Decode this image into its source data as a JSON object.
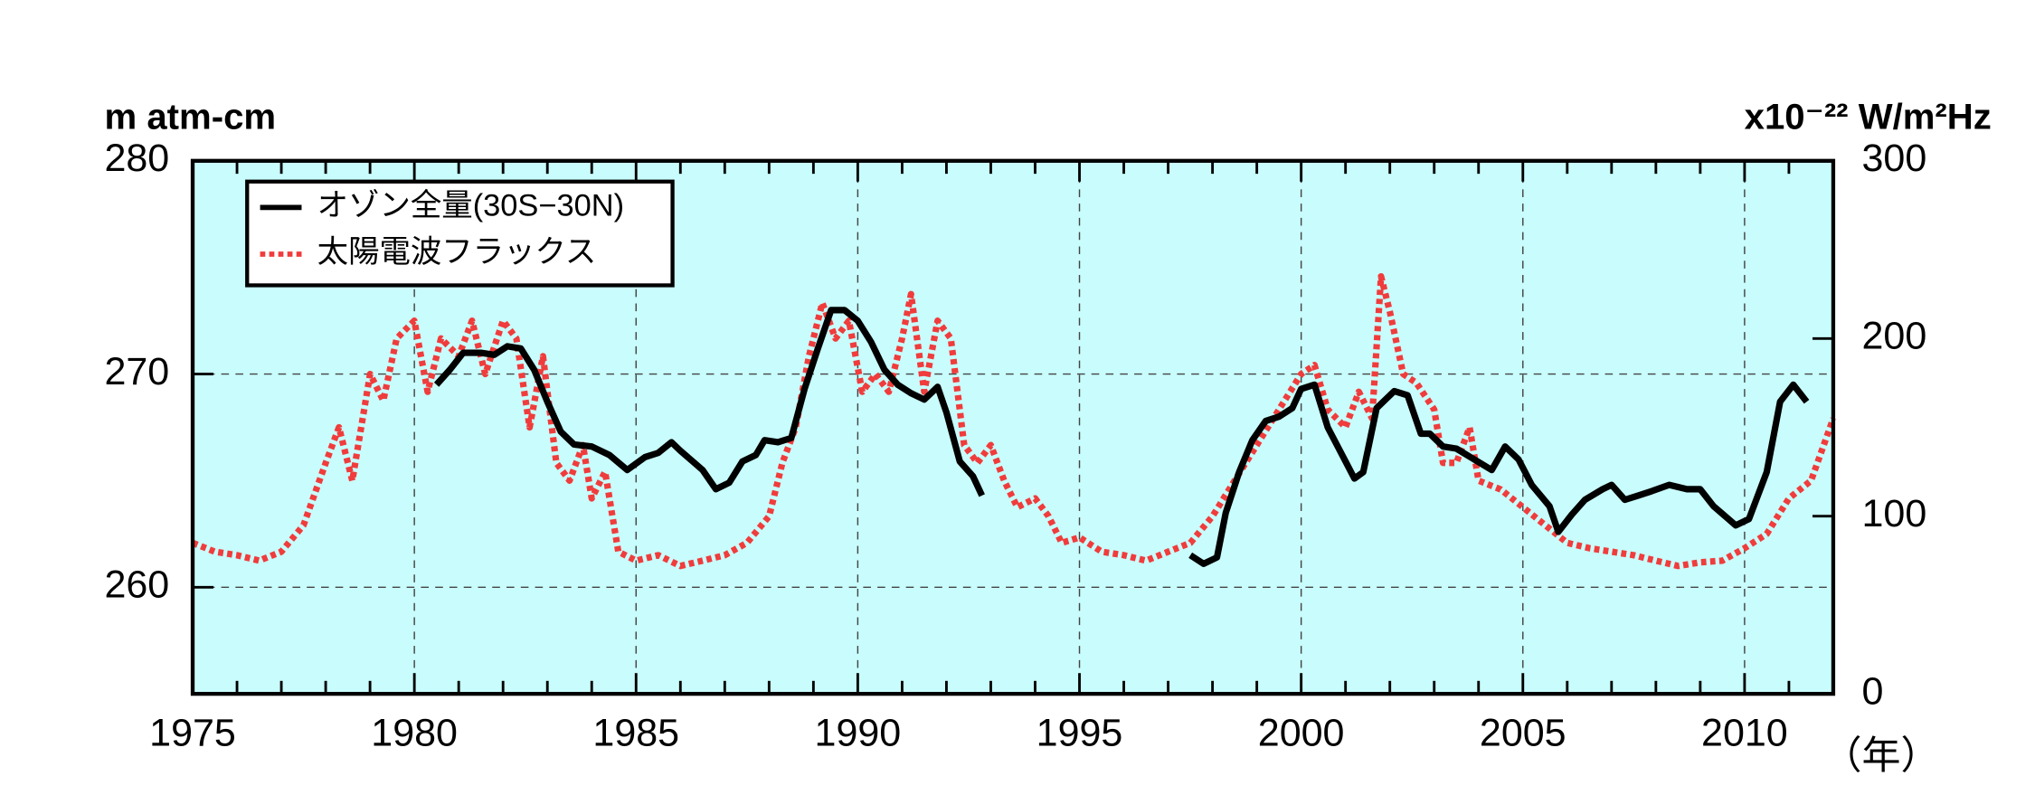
{
  "chart_data": {
    "type": "line",
    "y_label": "m atm-cm",
    "y2_label": "x10⁻²² W/m²Hz",
    "x_unit": "（年）",
    "xlim": [
      1975,
      2012
    ],
    "xticks": [
      1975,
      1980,
      1985,
      1990,
      1995,
      2000,
      2005,
      2010
    ],
    "xminorticks": [
      1976,
      1977,
      1978,
      1979,
      1981,
      1982,
      1983,
      1984,
      1986,
      1987,
      1988,
      1989,
      1991,
      1992,
      1993,
      1994,
      1996,
      1997,
      1998,
      1999,
      2001,
      2002,
      2003,
      2004,
      2006,
      2007,
      2008,
      2009,
      2011
    ],
    "ylim": [
      255,
      280
    ],
    "yticks": [
      260,
      270,
      280
    ],
    "y2lim": [
      0,
      300
    ],
    "y2ticks": [
      0,
      100,
      200,
      300
    ],
    "grid": true,
    "background": "#c9fcfc",
    "legend": "upper left",
    "series": [
      {
        "name": "オゾン全量(30S−30N)",
        "color": "#000000",
        "style": "solid",
        "x": [
          1980.5,
          1980.8,
          1981.1,
          1981.5,
          1981.8,
          1982.1,
          1982.4,
          1982.7,
          1983.0,
          1983.3,
          1983.6,
          1984.0,
          1984.4,
          1984.8,
          1985.2,
          1985.5,
          1985.8,
          1986.0,
          1986.5,
          1986.8,
          1987.1,
          1987.4,
          1987.7,
          1987.9,
          1988.2,
          1988.5,
          1988.8,
          1989.1,
          1989.4,
          1989.7,
          1990.0,
          1990.3,
          1990.6,
          1990.9,
          1991.2,
          1991.5,
          1991.8,
          1992.0,
          1992.3,
          1992.6,
          1992.8,
          1995.0,
          1997.5,
          1997.8,
          1998.1,
          1998.3,
          1998.6,
          1998.9,
          1999.2,
          1999.5,
          1999.8,
          2000.0,
          2000.3,
          2000.6,
          2000.9,
          2001.2,
          2001.4,
          2001.7,
          2002.1,
          2002.4,
          2002.7,
          2002.9,
          2003.2,
          2003.5,
          2003.9,
          2004.3,
          2004.6,
          2004.9,
          2005.2,
          2005.6,
          2005.8,
          2006.1,
          2006.4,
          2006.8,
          2007.0,
          2007.3,
          2007.6,
          2007.9,
          2008.3,
          2008.7,
          2009.0,
          2009.3,
          2009.8,
          2010.1,
          2010.5,
          2010.8,
          2011.1,
          2011.4
        ],
        "values": [
          269.5,
          270.2,
          271.0,
          271.0,
          270.9,
          271.3,
          271.2,
          270.2,
          268.7,
          267.3,
          266.7,
          266.6,
          266.2,
          265.5,
          266.1,
          266.3,
          266.8,
          266.4,
          265.5,
          264.6,
          264.9,
          265.9,
          266.2,
          266.9,
          266.8,
          267.0,
          269.3,
          271.2,
          273.0,
          273.0,
          272.5,
          271.5,
          270.2,
          269.5,
          269.1,
          268.8,
          269.4,
          268.2,
          265.9,
          265.2,
          264.3,
          null,
          261.5,
          261.1,
          261.4,
          263.5,
          265.4,
          266.9,
          267.8,
          268.0,
          268.4,
          269.3,
          269.5,
          267.5,
          266.3,
          265.1,
          265.4,
          268.4,
          269.2,
          269.0,
          267.2,
          267.2,
          266.6,
          266.5,
          266.0,
          265.5,
          266.6,
          266.0,
          264.8,
          263.8,
          262.6,
          263.4,
          264.1,
          264.6,
          264.8,
          264.1,
          264.3,
          264.5,
          264.8,
          264.6,
          264.6,
          263.8,
          262.9,
          263.2,
          265.4,
          268.7,
          269.5,
          268.7
        ]
      },
      {
        "name": "太陽電波フラックス",
        "color": "#f03c3c",
        "style": "dotted",
        "axis": "y2",
        "x": [
          1975.0,
          1975.5,
          1976.0,
          1976.5,
          1977.0,
          1977.5,
          1978.0,
          1978.3,
          1978.6,
          1979.0,
          1979.3,
          1979.6,
          1980.0,
          1980.3,
          1980.6,
          1981.0,
          1981.3,
          1981.6,
          1982.0,
          1982.3,
          1982.6,
          1982.9,
          1983.2,
          1983.5,
          1983.8,
          1984.0,
          1984.3,
          1984.6,
          1985.0,
          1985.5,
          1986.0,
          1986.5,
          1987.0,
          1987.5,
          1988.0,
          1988.3,
          1988.6,
          1988.9,
          1989.2,
          1989.5,
          1989.8,
          1990.1,
          1990.4,
          1990.7,
          1991.0,
          1991.2,
          1991.5,
          1991.8,
          1992.1,
          1992.4,
          1992.7,
          1993.0,
          1993.3,
          1993.6,
          1994.0,
          1994.3,
          1994.6,
          1995.0,
          1995.5,
          1996.0,
          1996.5,
          1997.0,
          1997.5,
          1998.0,
          1998.5,
          1999.0,
          1999.5,
          2000.0,
          2000.3,
          2000.6,
          2001.0,
          2001.3,
          2001.6,
          2001.8,
          2002.0,
          2002.3,
          2002.6,
          2003.0,
          2003.2,
          2003.5,
          2003.8,
          2004.0,
          2004.5,
          2005.0,
          2005.5,
          2006.0,
          2006.5,
          2007.0,
          2007.5,
          2008.0,
          2008.5,
          2009.0,
          2009.5,
          2010.0,
          2010.5,
          2011.0,
          2011.5,
          2012.0
        ],
        "values": [
          85,
          80,
          78,
          75,
          80,
          95,
          130,
          150,
          120,
          180,
          165,
          200,
          210,
          170,
          200,
          190,
          210,
          180,
          210,
          200,
          150,
          190,
          130,
          120,
          140,
          110,
          125,
          80,
          75,
          78,
          72,
          75,
          78,
          85,
          100,
          130,
          150,
          190,
          220,
          200,
          210,
          170,
          180,
          170,
          200,
          225,
          170,
          210,
          200,
          140,
          130,
          140,
          120,
          105,
          110,
          100,
          85,
          88,
          80,
          78,
          75,
          80,
          85,
          100,
          120,
          140,
          160,
          180,
          185,
          160,
          150,
          170,
          155,
          235,
          215,
          180,
          175,
          160,
          130,
          130,
          150,
          120,
          115,
          105,
          95,
          85,
          82,
          80,
          78,
          75,
          72,
          74,
          75,
          82,
          90,
          110,
          120,
          155
        ]
      }
    ]
  }
}
